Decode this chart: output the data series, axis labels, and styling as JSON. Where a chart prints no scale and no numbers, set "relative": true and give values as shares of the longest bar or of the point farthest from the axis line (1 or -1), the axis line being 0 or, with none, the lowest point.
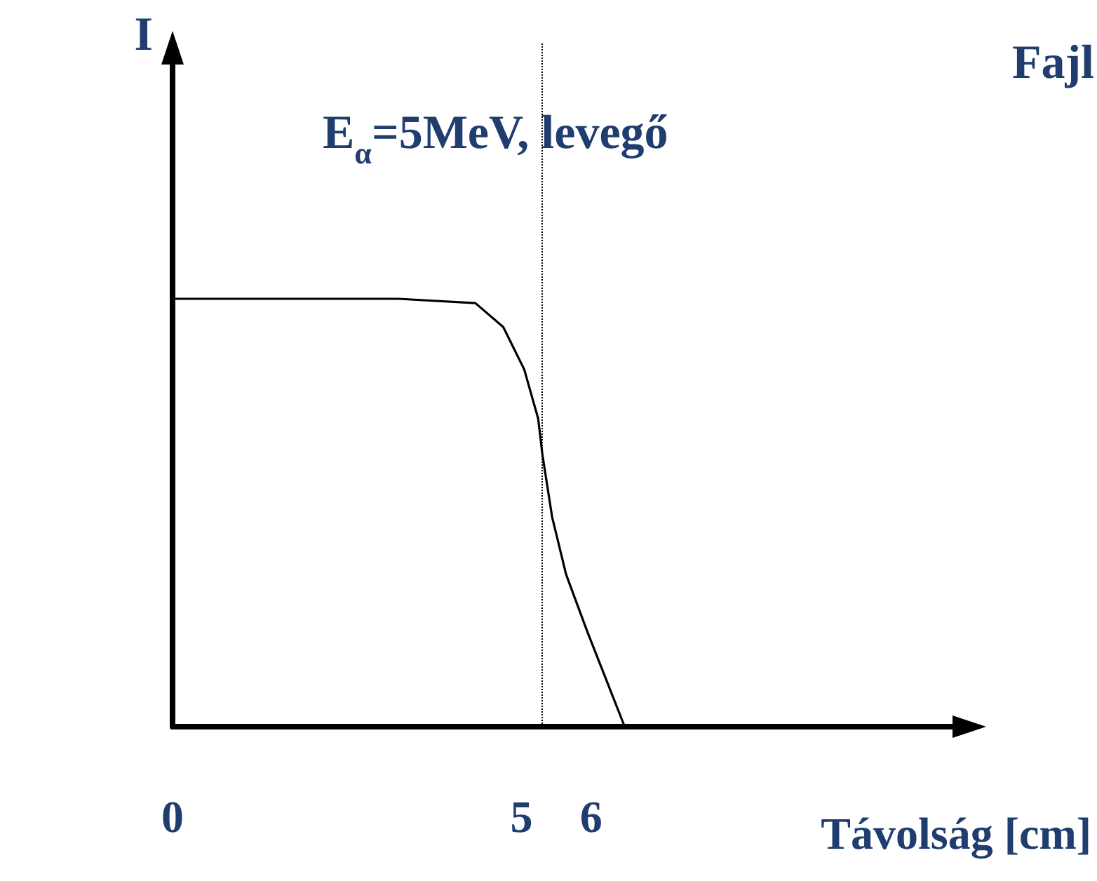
{
  "chart_data": {
    "type": "line",
    "relative": true,
    "xlabel": "Távolság [cm]",
    "ylabel": "I",
    "annotations": [
      "E$_{α}$=5MeV, levegő",
      "Fajl"
    ],
    "x": [
      0,
      3.24,
      4.34,
      4.74,
      5.04,
      5.24,
      5.3,
      5.44,
      5.64,
      5.94,
      6.48
    ],
    "series": [
      {
        "color": "#000000",
        "values": [
          1,
          1,
          0.99,
          0.934,
          0.835,
          0.72,
          0.637,
          0.49,
          0.356,
          0.224,
          0
        ]
      }
    ],
    "xlim": [
      0,
      11.5
    ],
    "xticks": [
      0,
      5,
      6
    ],
    "ref_lines": [
      {
        "axis": "x",
        "value": 5.3,
        "color": "#000000",
        "line_style": "dotted"
      }
    ],
    "grid": false,
    "marker": "none",
    "line_style": "solid"
  }
}
